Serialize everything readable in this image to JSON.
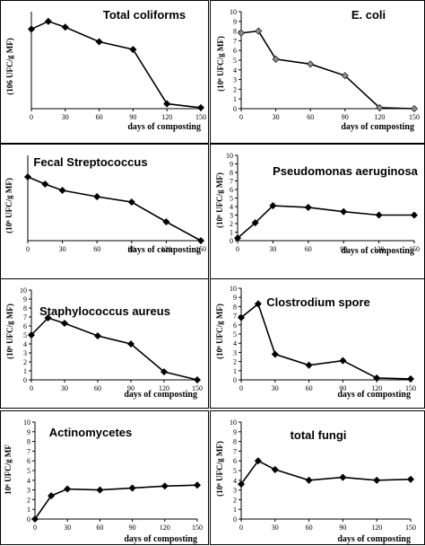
{
  "chart_data": [
    {
      "type": "line",
      "title": "Total coliforms",
      "xlabel": "days of composting",
      "ylabel": "(106 UFC/g MF)",
      "x": [
        0,
        15,
        30,
        60,
        90,
        120,
        150
      ],
      "y": [
        8.2,
        9.0,
        8.4,
        6.9,
        6.1,
        0.5,
        0.1
      ],
      "xticks": [
        "0",
        "30",
        "60",
        "90",
        "120",
        "150"
      ],
      "yticks": [],
      "ylim": [
        0,
        10
      ],
      "marker_color": "#000000",
      "line_color": "#000000"
    },
    {
      "type": "line",
      "title": "E. coli",
      "xlabel": "days of composting",
      "ylabel": "(10⁶ UFC/g MF)",
      "x": [
        0,
        15,
        30,
        60,
        90,
        120,
        150
      ],
      "y": [
        7.8,
        8.0,
        5.1,
        4.6,
        3.4,
        0.1,
        0.0
      ],
      "xticks": [
        "0",
        "30",
        "60",
        "90",
        "120",
        "150"
      ],
      "yticks": [
        "0",
        "1",
        "2",
        "3",
        "4",
        "5",
        "6",
        "7",
        "8",
        "9",
        "10"
      ],
      "ylim": [
        0,
        10
      ],
      "marker_color": "#8c8c8c",
      "line_color": "#000000"
    },
    {
      "type": "line",
      "title": "Fecal Streptococcus",
      "xlabel": "days of composting",
      "ylabel": "(10⁶ UFC/g MF)",
      "x": [
        0,
        15,
        30,
        60,
        90,
        120,
        150
      ],
      "y": [
        7.1,
        6.3,
        5.6,
        4.9,
        4.3,
        2.1,
        0.0
      ],
      "xticks": [
        "0",
        "30",
        "60",
        "90",
        "120",
        "150"
      ],
      "yticks": [],
      "ylim": [
        0,
        9.5
      ],
      "marker_color": "#000000",
      "line_color": "#000000"
    },
    {
      "type": "line",
      "title": "Pseudomonas aeruginosa",
      "xlabel": "days of composting",
      "ylabel": "(10⁶ UFC/g MF)",
      "x": [
        0,
        15,
        30,
        60,
        90,
        120,
        150
      ],
      "y": [
        0.3,
        2.1,
        4.1,
        3.9,
        3.4,
        3.0,
        3.0
      ],
      "xticks": [
        "0",
        "30",
        "60",
        "90",
        "120",
        "150"
      ],
      "yticks": [
        "0",
        "1",
        "2",
        "3",
        "4",
        "5",
        "6",
        "7",
        "8",
        "9",
        "10"
      ],
      "ylim": [
        0,
        10
      ],
      "marker_color": "#000000",
      "line_color": "#000000"
    },
    {
      "type": "line",
      "title": "Staphylococcus aureus",
      "xlabel": "days of composting",
      "ylabel": "(10⁶ UFC/g MF)",
      "x": [
        0,
        15,
        30,
        60,
        90,
        120,
        150
      ],
      "y": [
        5.0,
        6.9,
        6.3,
        4.9,
        4.0,
        0.9,
        0.0
      ],
      "xticks": [
        "0",
        "30",
        "60",
        "90",
        "120",
        "150"
      ],
      "yticks": [
        "0",
        "1",
        "2",
        "3",
        "4",
        "5",
        "6",
        "7",
        "8",
        "9",
        "10"
      ],
      "ylim": [
        0,
        10
      ],
      "marker_color": "#000000",
      "line_color": "#000000"
    },
    {
      "type": "line",
      "title": "Clostrodium spore",
      "xlabel": "days of composting",
      "ylabel": "(10⁶ UFC/g MF)",
      "x": [
        0,
        15,
        30,
        60,
        90,
        120,
        150
      ],
      "y": [
        6.8,
        8.3,
        2.8,
        1.6,
        2.1,
        0.2,
        0.1
      ],
      "xticks": [
        "0",
        "30",
        "60",
        "90",
        "120",
        "150"
      ],
      "yticks": [
        "0",
        "1",
        "2",
        "3",
        "4",
        "5",
        "6",
        "7",
        "8",
        "9",
        "10"
      ],
      "ylim": [
        0,
        10
      ],
      "marker_color": "#000000",
      "line_color": "#000000"
    },
    {
      "type": "line",
      "title": "Actinomycetes",
      "xlabel": "days of composting",
      "ylabel": "10⁶ UFC/g MF",
      "x": [
        0,
        15,
        30,
        60,
        90,
        120,
        150
      ],
      "y": [
        0.0,
        2.4,
        3.1,
        3.0,
        3.2,
        3.4,
        3.5
      ],
      "xticks": [
        "0",
        "30",
        "60",
        "90",
        "120",
        "150"
      ],
      "yticks": [
        "0",
        "1",
        "2",
        "3",
        "4",
        "5",
        "6",
        "7",
        "8",
        "9",
        "10"
      ],
      "ylim": [
        0,
        10
      ],
      "marker_color": "#000000",
      "line_color": "#000000"
    },
    {
      "type": "line",
      "title": "total fungi",
      "xlabel": "days of composting",
      "ylabel": "(10⁶ UFC/g MF)",
      "x": [
        0,
        15,
        30,
        60,
        90,
        120,
        150
      ],
      "y": [
        3.6,
        6.0,
        5.1,
        4.0,
        4.3,
        4.0,
        4.1
      ],
      "xticks": [
        "0",
        "30",
        "60",
        "90",
        "120",
        "150"
      ],
      "yticks": [
        "0",
        "1",
        "2",
        "3",
        "4",
        "5",
        "6",
        "7",
        "8",
        "9",
        "10"
      ],
      "ylim": [
        0,
        10
      ],
      "marker_color": "#000000",
      "line_color": "#000000"
    }
  ]
}
